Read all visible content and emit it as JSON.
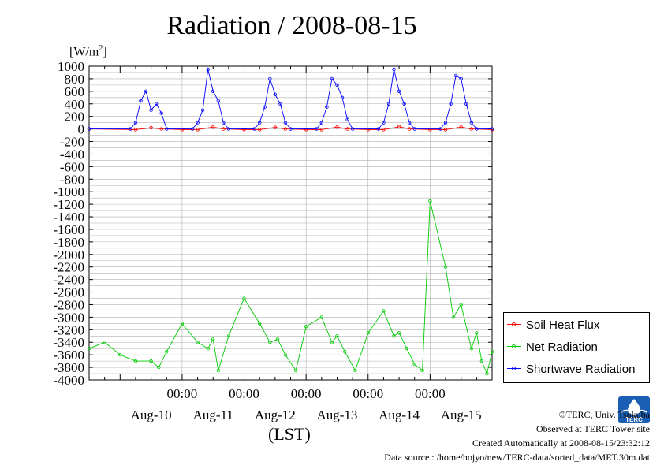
{
  "title": "Radiation / 2008-08-15",
  "y_unit_label": "[W/m2]",
  "x_unit_label": "(LST)",
  "chart_data": {
    "type": "line",
    "title": "Radiation / 2008-08-15",
    "ylabel": "[W/m2]",
    "xlabel": "(LST)",
    "ylim": [
      -4000,
      1000
    ],
    "yticks": [
      1000,
      800,
      600,
      400,
      200,
      0,
      -200,
      -400,
      -600,
      -800,
      -1000,
      -1200,
      -1400,
      -1600,
      -1800,
      -2000,
      -2200,
      -2400,
      -2600,
      -2800,
      -3000,
      -3200,
      -3400,
      -3600,
      -3800,
      -4000
    ],
    "xlim": [
      "2008-08-09T12:00",
      "2008-08-15T24:00"
    ],
    "x_tick_labels": [
      "00:00",
      "00:00",
      "00:00",
      "00:00",
      "00:00"
    ],
    "x_tick_times": [
      "2008-08-11T00:00",
      "2008-08-12T00:00",
      "2008-08-13T00:00",
      "2008-08-14T00:00",
      "2008-08-15T00:00"
    ],
    "day_labels": [
      "Aug-10",
      "Aug-11",
      "Aug-12",
      "Aug-13",
      "Aug-14",
      "Aug-15"
    ],
    "day_label_times": [
      "2008-08-10T12:00",
      "2008-08-11T12:00",
      "2008-08-12T12:00",
      "2008-08-13T12:00",
      "2008-08-14T12:00",
      "2008-08-15T12:00"
    ],
    "grid": true,
    "legend_position": "right",
    "series": [
      {
        "name": "Soil Heat Flux",
        "color": "#ff0000",
        "x": [
          "2008-08-09T12:00",
          "2008-08-10T06:00",
          "2008-08-10T12:00",
          "2008-08-10T16:00",
          "2008-08-11T00:00",
          "2008-08-11T06:00",
          "2008-08-11T12:00",
          "2008-08-11T16:00",
          "2008-08-12T00:00",
          "2008-08-12T06:00",
          "2008-08-12T12:00",
          "2008-08-12T16:00",
          "2008-08-13T00:00",
          "2008-08-13T06:00",
          "2008-08-13T12:00",
          "2008-08-13T16:00",
          "2008-08-14T00:00",
          "2008-08-14T06:00",
          "2008-08-14T12:00",
          "2008-08-14T16:00",
          "2008-08-15T00:00",
          "2008-08-15T06:00",
          "2008-08-15T12:00",
          "2008-08-15T16:00",
          "2008-08-15T24:00"
        ],
        "y": [
          0,
          -10,
          20,
          0,
          -10,
          -10,
          30,
          0,
          -10,
          -10,
          25,
          0,
          -10,
          -10,
          30,
          0,
          -10,
          -10,
          35,
          0,
          -10,
          -10,
          30,
          0,
          -10
        ]
      },
      {
        "name": "Net Radiation",
        "color": "#00cc00",
        "x": [
          "2008-08-09T12:00",
          "2008-08-09T18:00",
          "2008-08-10T00:00",
          "2008-08-10T06:00",
          "2008-08-10T12:00",
          "2008-08-10T15:00",
          "2008-08-10T18:00",
          "2008-08-11T00:00",
          "2008-08-11T06:00",
          "2008-08-11T10:00",
          "2008-08-11T12:00",
          "2008-08-11T14:00",
          "2008-08-11T18:00",
          "2008-08-12T00:00",
          "2008-08-12T06:00",
          "2008-08-12T10:00",
          "2008-08-12T13:00",
          "2008-08-12T16:00",
          "2008-08-12T20:00",
          "2008-08-13T00:00",
          "2008-08-13T06:00",
          "2008-08-13T10:00",
          "2008-08-13T12:00",
          "2008-08-13T15:00",
          "2008-08-13T19:00",
          "2008-08-14T00:00",
          "2008-08-14T06:00",
          "2008-08-14T10:00",
          "2008-08-14T12:00",
          "2008-08-14T15:00",
          "2008-08-14T18:00",
          "2008-08-14T21:00",
          "2008-08-15T00:00",
          "2008-08-15T06:00",
          "2008-08-15T09:00",
          "2008-08-15T12:00",
          "2008-08-15T16:00",
          "2008-08-15T18:00",
          "2008-08-15T20:00",
          "2008-08-15T22:00",
          "2008-08-15T24:00"
        ],
        "y": [
          -3500,
          -3400,
          -3600,
          -3700,
          -3700,
          -3800,
          -3550,
          -3100,
          -3400,
          -3500,
          -3350,
          -3850,
          -3300,
          -2700,
          -3100,
          -3400,
          -3350,
          -3600,
          -3850,
          -3150,
          -3000,
          -3400,
          -3300,
          -3550,
          -3850,
          -3250,
          -2900,
          -3300,
          -3250,
          -3500,
          -3750,
          -3850,
          -1150,
          -2200,
          -3000,
          -2800,
          -3500,
          -3250,
          -3700,
          -3900,
          -3550
        ]
      },
      {
        "name": "Shortwave Radiation",
        "color": "#0000ff",
        "x": [
          "2008-08-09T12:00",
          "2008-08-10T04:00",
          "2008-08-10T06:00",
          "2008-08-10T08:00",
          "2008-08-10T10:00",
          "2008-08-10T12:00",
          "2008-08-10T14:00",
          "2008-08-10T16:00",
          "2008-08-10T18:00",
          "2008-08-11T04:00",
          "2008-08-11T06:00",
          "2008-08-11T08:00",
          "2008-08-11T10:00",
          "2008-08-11T12:00",
          "2008-08-11T14:00",
          "2008-08-11T16:00",
          "2008-08-11T18:00",
          "2008-08-12T04:00",
          "2008-08-12T06:00",
          "2008-08-12T08:00",
          "2008-08-12T10:00",
          "2008-08-12T12:00",
          "2008-08-12T14:00",
          "2008-08-12T16:00",
          "2008-08-12T18:00",
          "2008-08-13T04:00",
          "2008-08-13T06:00",
          "2008-08-13T08:00",
          "2008-08-13T10:00",
          "2008-08-13T12:00",
          "2008-08-13T14:00",
          "2008-08-13T16:00",
          "2008-08-13T18:00",
          "2008-08-14T04:00",
          "2008-08-14T06:00",
          "2008-08-14T08:00",
          "2008-08-14T10:00",
          "2008-08-14T12:00",
          "2008-08-14T14:00",
          "2008-08-14T16:00",
          "2008-08-14T18:00",
          "2008-08-15T04:00",
          "2008-08-15T06:00",
          "2008-08-15T08:00",
          "2008-08-15T10:00",
          "2008-08-15T12:00",
          "2008-08-15T14:00",
          "2008-08-15T16:00",
          "2008-08-15T18:00",
          "2008-08-15T24:00"
        ],
        "y": [
          0,
          0,
          100,
          450,
          600,
          300,
          400,
          250,
          0,
          0,
          100,
          300,
          950,
          600,
          450,
          100,
          0,
          0,
          100,
          350,
          800,
          550,
          400,
          100,
          0,
          0,
          100,
          350,
          800,
          700,
          500,
          150,
          0,
          0,
          100,
          400,
          950,
          600,
          400,
          100,
          0,
          0,
          100,
          400,
          850,
          800,
          400,
          100,
          0,
          0
        ]
      }
    ]
  },
  "legend": {
    "items": [
      {
        "label": "Soil Heat Flux",
        "color": "#ff0000"
      },
      {
        "label": "Net Radiation",
        "color": "#00cc00"
      },
      {
        "label": "Shortwave Radiation",
        "color": "#0000ff"
      }
    ]
  },
  "credits": {
    "copyright": "©TERC, Univ. Tsukuba",
    "observed": "Observed at TERC Tower site",
    "created": "Created Automatically at 2008-08-15/23:32:12",
    "source": "Data source : /home/hojyo/new/TERC-data/sorted_data/MET.30m.dat"
  },
  "logo": {
    "text": "TERC",
    "color": "#1a5fb4"
  }
}
